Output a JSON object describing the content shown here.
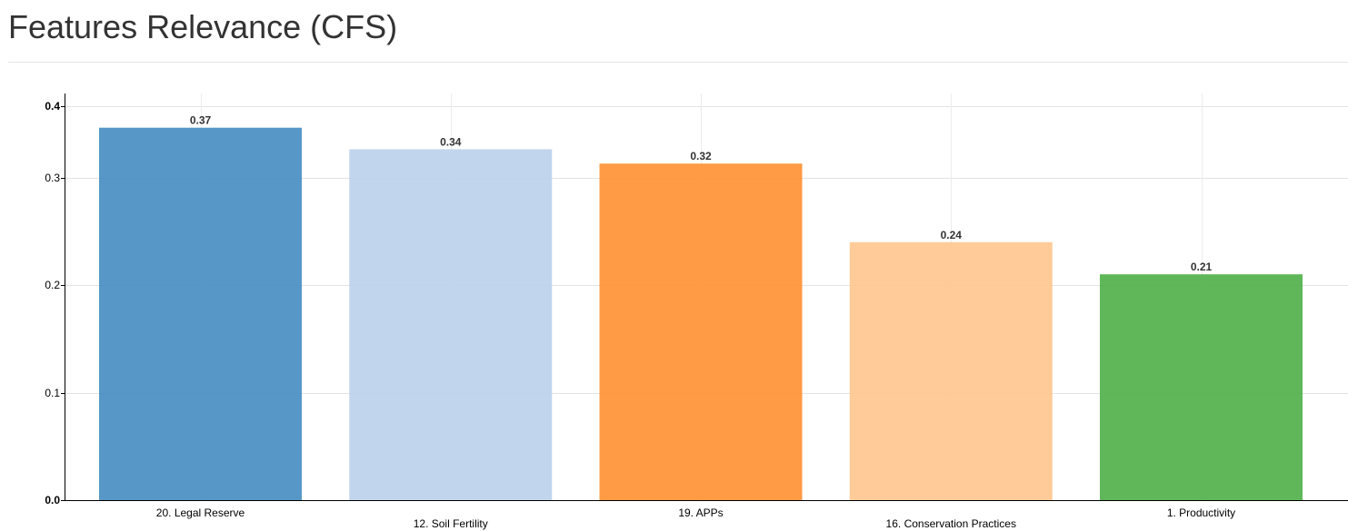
{
  "page": {
    "title": "Features Relevance (CFS)"
  },
  "chart_data": {
    "type": "bar",
    "title": "Features Relevance (CFS)",
    "xlabel": "",
    "ylabel": "",
    "ylim": [
      0,
      0.4
    ],
    "y_scale": "piecewise (0-0.2 and 0.2-0.4 segments drawn with different spacing)",
    "grid": true,
    "legend": "none",
    "y_ticks": [
      "0.0",
      "0.1",
      "0.2",
      "0.3",
      "0.4"
    ],
    "categories": [
      "20. Legal Reserve",
      "12. Soil Fertility",
      "19. APPs",
      "16. Conservation Practices",
      "1. Productivity"
    ],
    "values": [
      0.37,
      0.34,
      0.32,
      0.24,
      0.21
    ],
    "data_labels": [
      "0.37",
      "0.34",
      "0.32",
      "0.24",
      "0.21"
    ],
    "colors": [
      "#4a8fc3",
      "#bcd2ec",
      "#ff9337",
      "#ffc891",
      "#53b24c"
    ]
  }
}
